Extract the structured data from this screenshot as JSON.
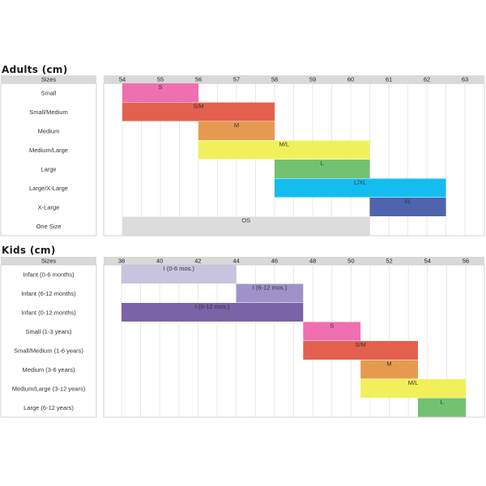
{
  "chart_data": [
    {
      "type": "bar",
      "orientation": "horizontal-range",
      "title": "Adults (cm)",
      "header_label": "Sizes",
      "ticks": [
        "54",
        "55",
        "56",
        "57",
        "58",
        "59",
        "60",
        "61",
        "62",
        "63"
      ],
      "xlim": [
        54,
        63
      ],
      "grid": "half-step",
      "categories": [
        "Small",
        "Small/Medium",
        "Medium",
        "Medium/Large",
        "Large",
        "Large/X-Large",
        "X-Large",
        "One Size"
      ],
      "series": [
        {
          "values": [
            {
              "label": "S",
              "start": 54,
              "end": 56,
              "color": "#f06fb0"
            },
            {
              "label": "S/M",
              "start": 54,
              "end": 58,
              "color": "#e4604e"
            },
            {
              "label": "M",
              "start": 56,
              "end": 58,
              "color": "#e69a50"
            },
            {
              "label": "M/L",
              "start": 56,
              "end": 60.5,
              "color": "#f2f05a"
            },
            {
              "label": "L",
              "start": 58,
              "end": 60.5,
              "color": "#72c271"
            },
            {
              "label": "L/XL",
              "start": 58,
              "end": 62.5,
              "color": "#14bdf0"
            },
            {
              "label": "XL",
              "start": 60.5,
              "end": 62.5,
              "color": "#4e64ad"
            },
            {
              "label": "OS",
              "start": 54,
              "end": 60.5,
              "color": "#dcdcdc"
            }
          ]
        }
      ]
    },
    {
      "type": "bar",
      "orientation": "horizontal-range",
      "title": "Kids (cm)",
      "header_label": "Sizes",
      "ticks": [
        "38",
        "40",
        "42",
        "44",
        "46",
        "48",
        "50",
        "52",
        "54",
        "56"
      ],
      "xlim": [
        38,
        56
      ],
      "grid": "1-unit",
      "categories": [
        "Infant (0-6 months)",
        "Infant (6-12 months)",
        "Infant (0-12 months)",
        "Small (1-3 years)",
        "Small/Medium (1-6 years)",
        "Medium (3-6 years)",
        "Medium/Large (3-12 years)",
        "Large (6-12 years)"
      ],
      "series": [
        {
          "values": [
            {
              "label": "I (0-6 mos.)",
              "start": 38,
              "end": 44,
              "color": "#c8c3df"
            },
            {
              "label": "I (6-12 mos.)",
              "start": 44,
              "end": 47.5,
              "color": "#9e92c8"
            },
            {
              "label": "I (0-12 mos.)",
              "start": 38,
              "end": 47.5,
              "color": "#7a63a6"
            },
            {
              "label": "S",
              "start": 47.5,
              "end": 50.5,
              "color": "#f06fb0"
            },
            {
              "label": "S/M",
              "start": 47.5,
              "end": 53.5,
              "color": "#e4604e"
            },
            {
              "label": "M",
              "start": 50.5,
              "end": 53.5,
              "color": "#e69a50"
            },
            {
              "label": "M/L",
              "start": 50.5,
              "end": 56,
              "color": "#f2f05a"
            },
            {
              "label": "L",
              "start": 53.5,
              "end": 56,
              "color": "#72c271"
            }
          ]
        }
      ]
    }
  ],
  "colors": {
    "header_fill": "#d9d9d9",
    "grid": "#e3e3e3",
    "border": "#c8c8c8"
  }
}
